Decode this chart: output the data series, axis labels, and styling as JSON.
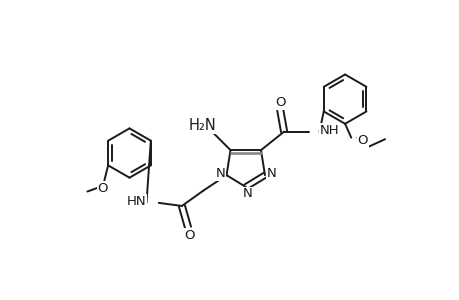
{
  "bg_color": "#ffffff",
  "line_color": "#1a1a1a",
  "line_width": 1.4,
  "font_size": 9.5,
  "figsize": [
    4.6,
    3.0
  ],
  "dpi": 100,
  "xlim": [
    0,
    460
  ],
  "ylim": [
    0,
    300
  ]
}
